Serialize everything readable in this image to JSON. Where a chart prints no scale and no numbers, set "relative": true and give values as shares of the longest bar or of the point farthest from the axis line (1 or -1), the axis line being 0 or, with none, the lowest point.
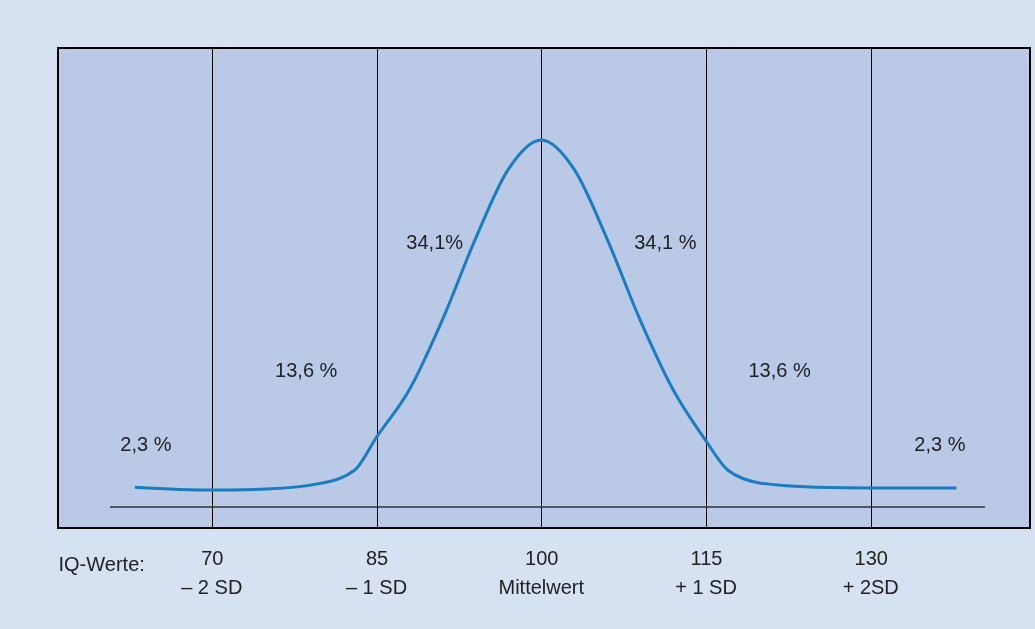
{
  "chart_data": {
    "type": "line",
    "relative": true,
    "xlabel": "IQ-Werte:",
    "x": [
      63,
      70,
      75,
      80,
      83,
      85,
      88,
      91,
      94,
      97,
      100,
      103,
      106,
      109,
      112,
      115,
      117,
      120,
      125,
      130,
      137.8
    ],
    "series": [
      {
        "color": "#1a7cc1",
        "values": [
          0.054,
          0.046,
          0.049,
          0.065,
          0.1,
          0.19,
          0.32,
          0.51,
          0.73,
          0.92,
          1,
          0.92,
          0.73,
          0.51,
          0.32,
          0.18,
          0.1,
          0.065,
          0.054,
          0.052,
          0.052
        ]
      }
    ],
    "xlim": [
      56,
      144.5
    ],
    "xticks": [
      70,
      85,
      100,
      115,
      130
    ],
    "grid": "x",
    "marker": "none",
    "line_style": "solid",
    "tick_labels": "x",
    "annotations": [
      "2,3 %",
      "13,6 %",
      "34,1%",
      "34,1 %",
      "13,6 %",
      "2,3 %",
      "– 2 SD",
      "– 1 SD",
      "Mittelwert",
      "+ 1 SD",
      "+ 2SD"
    ]
  }
}
